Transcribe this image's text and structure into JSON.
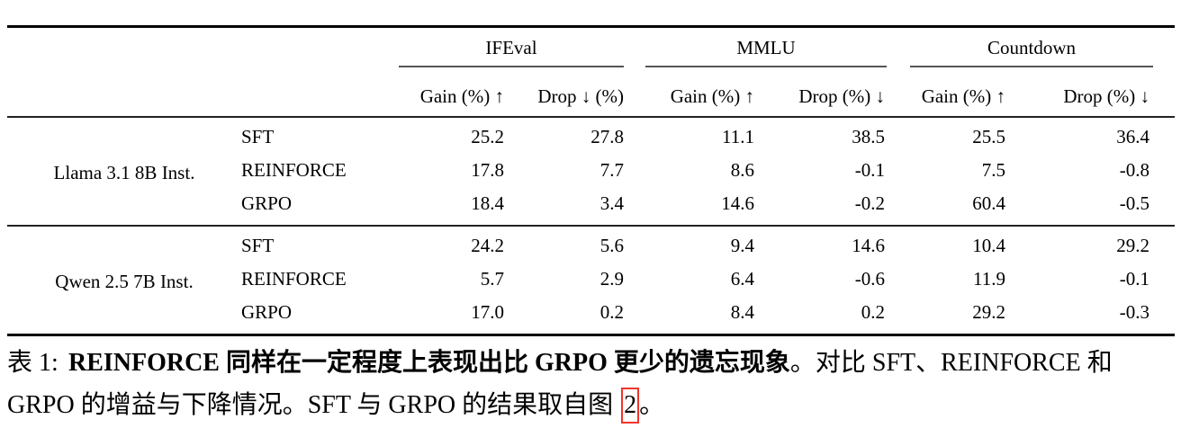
{
  "table": {
    "groups": [
      {
        "label": "IFEval",
        "sub_gain": "Gain (%) ↑",
        "sub_drop": "Drop ↓ (%)"
      },
      {
        "label": "MMLU",
        "sub_gain": "Gain (%) ↑",
        "sub_drop": "Drop (%) ↓"
      },
      {
        "label": "Countdown",
        "sub_gain": "Gain (%) ↑",
        "sub_drop": "Drop (%) ↓"
      }
    ],
    "sections": [
      {
        "model": "Llama 3.1 8B Inst.",
        "rows": [
          {
            "method": "SFT",
            "values": [
              "25.2",
              "27.8",
              "11.1",
              "38.5",
              "25.5",
              "36.4"
            ]
          },
          {
            "method": "REINFORCE",
            "values": [
              "17.8",
              "7.7",
              "8.6",
              "-0.1",
              "7.5",
              "-0.8"
            ]
          },
          {
            "method": "GRPO",
            "values": [
              "18.4",
              "3.4",
              "14.6",
              "-0.2",
              "60.4",
              "-0.5"
            ]
          }
        ]
      },
      {
        "model": "Qwen 2.5 7B Inst.",
        "rows": [
          {
            "method": "SFT",
            "values": [
              "24.2",
              "5.6",
              "9.4",
              "14.6",
              "10.4",
              "29.2"
            ]
          },
          {
            "method": "REINFORCE",
            "values": [
              "5.7",
              "2.9",
              "6.4",
              "-0.6",
              "11.9",
              "-0.1"
            ]
          },
          {
            "method": "GRPO",
            "values": [
              "17.0",
              "0.2",
              "8.4",
              "0.2",
              "29.2",
              "-0.3"
            ]
          }
        ]
      }
    ]
  },
  "caption": {
    "label": "表 1:",
    "emphasis": "REINFORCE 同样在一定程度上表现出比 GRPO 更少的遗忘现象",
    "line1_rest": "。对比 SFT、",
    "line2_text": "REINFORCE 和 GRPO 的增益与下降情况。SFT 与 GRPO 的结果取自图",
    "figure_ref": "2",
    "line2_end": "。",
    "link_box_color": "#f0342c"
  }
}
